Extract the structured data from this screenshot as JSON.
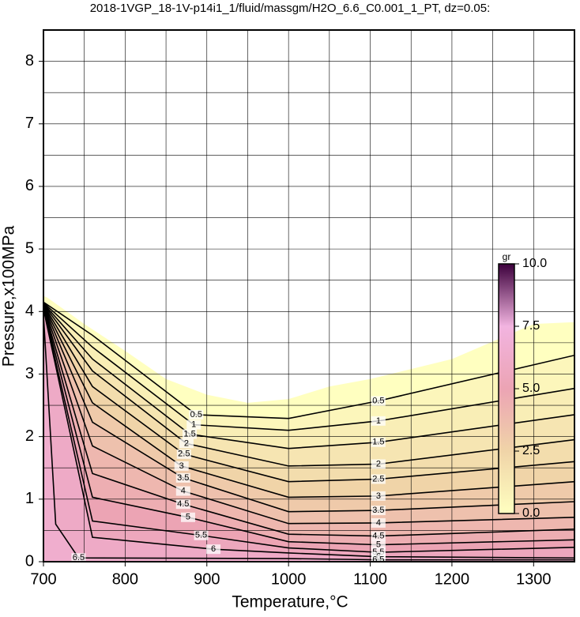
{
  "chart_data": {
    "type": "contour",
    "title": "2018-1VGP_18-1V-p14i1_1/fluid/massgm/H2O_6.6_C0.001_1_PT, dz=0.05:",
    "xlabel": "Temperature,°C",
    "ylabel": "Pressure,x100MPa",
    "xlim": [
      700,
      1350
    ],
    "ylim": [
      0,
      8.5
    ],
    "xticks": [
      700,
      800,
      900,
      1000,
      1100,
      1200,
      1300
    ],
    "yticks": [
      0,
      1,
      2,
      3,
      4,
      5,
      6,
      7,
      8
    ],
    "grid": true,
    "minor_grid": true,
    "boundary": {
      "x": [
        700,
        705,
        750,
        800,
        850,
        900,
        950,
        1000,
        1050,
        1100,
        1200,
        1300,
        1350
      ],
      "y": [
        4.25,
        4.22,
        3.8,
        3.37,
        2.92,
        2.67,
        2.54,
        2.6,
        2.8,
        2.92,
        3.24,
        3.8,
        3.83
      ]
    },
    "contours": [
      {
        "level": 0.5,
        "x": [
          700,
          760,
          887,
          1000,
          1110,
          1350
        ],
        "y": [
          4.15,
          3.62,
          2.35,
          2.29,
          2.57,
          3.3
        ]
      },
      {
        "level": 1,
        "x": [
          700,
          760,
          884,
          1000,
          1110,
          1350
        ],
        "y": [
          4.14,
          3.43,
          2.19,
          2.1,
          2.25,
          2.77
        ]
      },
      {
        "level": 1.5,
        "x": [
          700,
          760,
          879,
          1000,
          1110,
          1350
        ],
        "y": [
          4.13,
          3.24,
          2.04,
          1.81,
          1.91,
          2.35
        ]
      },
      {
        "level": 2,
        "x": [
          700,
          760,
          875,
          1000,
          1110,
          1350
        ],
        "y": [
          4.12,
          3.05,
          1.89,
          1.53,
          1.56,
          1.95
        ]
      },
      {
        "level": 2.5,
        "x": [
          700,
          760,
          872,
          1000,
          1110,
          1350
        ],
        "y": [
          4.11,
          2.8,
          1.72,
          1.28,
          1.32,
          1.6
        ]
      },
      {
        "level": 3,
        "x": [
          700,
          760,
          869,
          1000,
          1110,
          1350
        ],
        "y": [
          4.1,
          2.54,
          1.53,
          1.03,
          1.05,
          1.28
        ]
      },
      {
        "level": 3.5,
        "x": [
          700,
          760,
          871,
          1000,
          1110,
          1350
        ],
        "y": [
          4.09,
          2.23,
          1.34,
          0.8,
          0.82,
          0.96
        ]
      },
      {
        "level": 4,
        "x": [
          700,
          760,
          871,
          1000,
          1110,
          1350
        ],
        "y": [
          4.08,
          1.85,
          1.13,
          0.61,
          0.62,
          0.71
        ]
      },
      {
        "level": 4.5,
        "x": [
          700,
          760,
          871,
          1000,
          1110,
          1350
        ],
        "y": [
          4.07,
          1.41,
          0.92,
          0.44,
          0.41,
          0.52
        ]
      },
      {
        "level": 5,
        "x": [
          700,
          760,
          877,
          1000,
          1110,
          1350
        ],
        "y": [
          4.06,
          1.03,
          0.71,
          0.32,
          0.27,
          0.35
        ]
      },
      {
        "level": 5.5,
        "x": [
          700,
          760,
          893,
          1000,
          1110,
          1350
        ],
        "y": [
          4.05,
          0.65,
          0.42,
          0.22,
          0.15,
          0.23
        ]
      },
      {
        "level": 6,
        "x": [
          700,
          760,
          908,
          1000,
          1110,
          1350
        ],
        "y": [
          4.04,
          0.39,
          0.2,
          0.14,
          0.08,
          0.06
        ]
      },
      {
        "level": 6.5,
        "x": [
          700,
          715,
          743,
          1000,
          1110,
          1350
        ],
        "y": [
          3.95,
          0.6,
          0.06,
          0.05,
          0.03,
          0.03
        ]
      }
    ],
    "colorbar": {
      "label": "gr",
      "ticks": [
        {
          "value": 0,
          "label": "0.0"
        },
        2.5,
        {
          "value": 5,
          "label": "5.0"
        },
        7.5,
        {
          "value": 10,
          "label": "10.0"
        }
      ],
      "colors": [
        "#ffffc0",
        "#f0d4a8",
        "#eca4b4",
        "#f2b4e0",
        "#3c003c"
      ]
    }
  }
}
